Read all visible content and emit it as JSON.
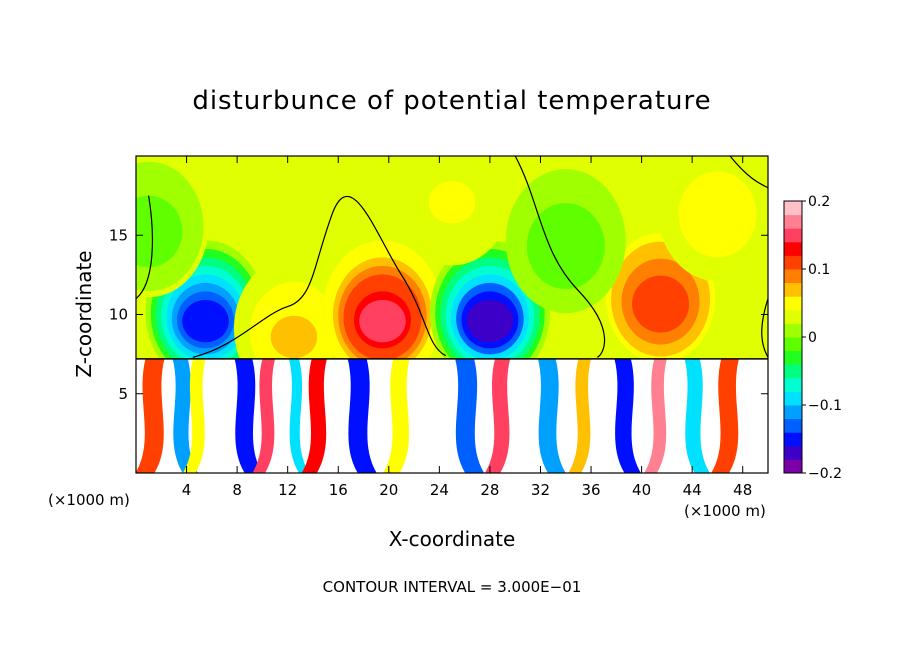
{
  "chart_data": {
    "type": "heatmap",
    "title": "disturbunce of potential temperature",
    "xlabel": "X-coordinate",
    "ylabel": "Z-coordinate",
    "x_unit_left": "(×1000 m)",
    "x_unit_right": "(×1000 m)",
    "xlim": [
      0,
      50
    ],
    "ylim": [
      0,
      20
    ],
    "x_ticks": [
      4,
      8,
      12,
      16,
      20,
      24,
      28,
      32,
      36,
      40,
      44,
      48
    ],
    "y_ticks": [
      5,
      10,
      15
    ],
    "colorbar": {
      "range": [
        -0.2,
        0.2
      ],
      "tick_labels": [
        "0.2",
        "0.1",
        "0",
        "−0.1",
        "−0.2"
      ],
      "tick_values": [
        0.2,
        0.1,
        0,
        -0.1,
        -0.2
      ],
      "colors": [
        "#7b00a8",
        "#3c00c8",
        "#0010ff",
        "#0060ff",
        "#00a0ff",
        "#00e0ff",
        "#00ffd0",
        "#00ff80",
        "#20ff20",
        "#60ff00",
        "#a0ff00",
        "#e0ff00",
        "#ffff00",
        "#ffc000",
        "#ff8000",
        "#ff4000",
        "#ff0000",
        "#ff4060",
        "#ff8090",
        "#ffc0c8"
      ]
    },
    "features_upper": [
      {
        "x": 5.5,
        "z": 9.5,
        "value": -0.16
      },
      {
        "x": 12.5,
        "z": 8.5,
        "value": 0.06
      },
      {
        "x": 19.5,
        "z": 9.5,
        "value": 0.15
      },
      {
        "x": 28.0,
        "z": 9.5,
        "value": -0.17
      },
      {
        "x": 41.5,
        "z": 10.5,
        "value": 0.12
      },
      {
        "x": 1.0,
        "z": 15.0,
        "value": -0.01
      },
      {
        "x": 25.0,
        "z": 17.0,
        "value": 0.04
      },
      {
        "x": 34.0,
        "z": 14.0,
        "value": -0.02
      },
      {
        "x": 46.0,
        "z": 16.0,
        "value": 0.05
      }
    ],
    "contour_interval_label": "CONTOUR INTERVAL = 3.000E−01"
  }
}
